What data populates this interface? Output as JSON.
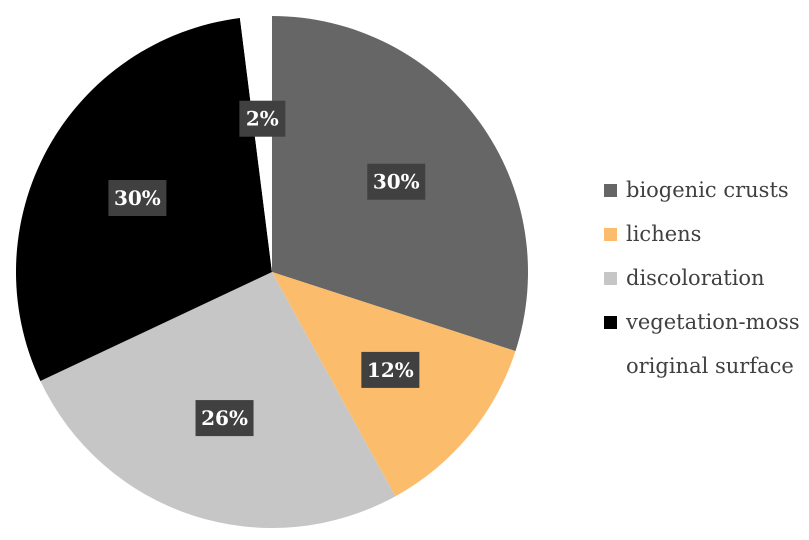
{
  "chart_data": {
    "type": "pie",
    "title": "",
    "categories": [
      "biogenic crusts",
      "lichens",
      "discoloration",
      "vegetation-moss",
      "original surface"
    ],
    "values": [
      30,
      12,
      26,
      30,
      2
    ],
    "labels": [
      "30%",
      "12%",
      "26%",
      "30%",
      "2%"
    ],
    "unit": "%",
    "colors": [
      "#666666",
      "#fbbc6c",
      "#c6c6c6",
      "#000000",
      "#ffffff"
    ],
    "data_label_style": {
      "background": "#404040",
      "text_color": "#ffffff"
    },
    "start_angle_deg": 0,
    "direction": "clockwise",
    "legend_position": "right"
  }
}
